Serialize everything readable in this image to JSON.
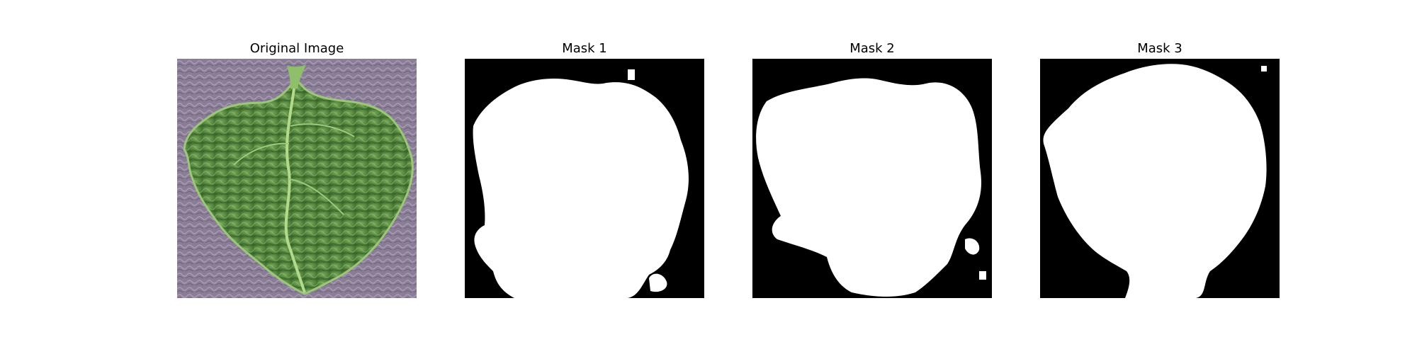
{
  "figure": {
    "panels": [
      {
        "title": "Original Image",
        "content": "leaf photograph"
      },
      {
        "title": "Mask 1",
        "content": "binary mask"
      },
      {
        "title": "Mask 2",
        "content": "binary mask"
      },
      {
        "title": "Mask 3",
        "content": "binary mask"
      }
    ]
  },
  "colors": {
    "background_texture": "#8a7e96",
    "leaf": "#5f8f4a",
    "leaf_vein": "#b3d98a",
    "mask_background": "#000000",
    "mask_foreground": "#ffffff"
  }
}
